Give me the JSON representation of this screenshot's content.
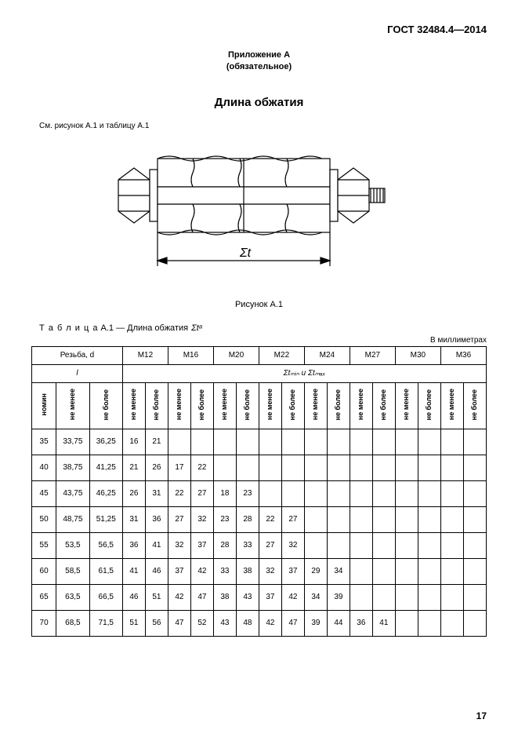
{
  "doc_header": "ГОСТ 32484.4—2014",
  "annex_line1": "Приложение А",
  "annex_line2": "(обязательное)",
  "title": "Длина обжатия",
  "ref_text": "См. рисунок А.1 и таблицу А.1",
  "figure_label": "Σt",
  "fig_caption": "Рисунок А.1",
  "table_title_prefix": "Т а б л и ц а",
  "table_title_rest": "  А.1 — Длина обжатия",
  "table_title_sym": "Σtᵃ",
  "units": "В миллиметрах",
  "header": {
    "thread": "Резьба, d",
    "l_label": "l",
    "sum_label": "Σtₘᵢₙ и Σtₘₐₓ",
    "nomin": "номин",
    "nm": "не менее",
    "nb": "не более",
    "sizes": [
      "M12",
      "M16",
      "M20",
      "M22",
      "M24",
      "M27",
      "M30",
      "M36"
    ]
  },
  "rows": [
    {
      "nom": "35",
      "lmin": "33,75",
      "lmax": "36,25",
      "v": [
        "16",
        "21",
        "",
        "",
        "",
        "",
        "",
        "",
        "",
        "",
        "",
        "",
        "",
        "",
        "",
        ""
      ]
    },
    {
      "nom": "40",
      "lmin": "38,75",
      "lmax": "41,25",
      "v": [
        "21",
        "26",
        "17",
        "22",
        "",
        "",
        "",
        "",
        "",
        "",
        "",
        "",
        "",
        "",
        "",
        ""
      ]
    },
    {
      "nom": "45",
      "lmin": "43,75",
      "lmax": "46,25",
      "v": [
        "26",
        "31",
        "22",
        "27",
        "18",
        "23",
        "",
        "",
        "",
        "",
        "",
        "",
        "",
        "",
        "",
        ""
      ]
    },
    {
      "nom": "50",
      "lmin": "48,75",
      "lmax": "51,25",
      "v": [
        "31",
        "36",
        "27",
        "32",
        "23",
        "28",
        "22",
        "27",
        "",
        "",
        "",
        "",
        "",
        "",
        "",
        ""
      ]
    },
    {
      "nom": "55",
      "lmin": "53,5",
      "lmax": "56,5",
      "v": [
        "36",
        "41",
        "32",
        "37",
        "28",
        "33",
        "27",
        "32",
        "",
        "",
        "",
        "",
        "",
        "",
        "",
        ""
      ]
    },
    {
      "nom": "60",
      "lmin": "58,5",
      "lmax": "61,5",
      "v": [
        "41",
        "46",
        "37",
        "42",
        "33",
        "38",
        "32",
        "37",
        "29",
        "34",
        "",
        "",
        "",
        "",
        "",
        ""
      ]
    },
    {
      "nom": "65",
      "lmin": "63,5",
      "lmax": "66,5",
      "v": [
        "46",
        "51",
        "42",
        "47",
        "38",
        "43",
        "37",
        "42",
        "34",
        "39",
        "",
        "",
        "",
        "",
        "",
        ""
      ]
    },
    {
      "nom": "70",
      "lmin": "68,5",
      "lmax": "71,5",
      "v": [
        "51",
        "56",
        "47",
        "52",
        "43",
        "48",
        "42",
        "47",
        "39",
        "44",
        "36",
        "41",
        "",
        "",
        " ",
        " "
      ]
    }
  ],
  "page_number": "17",
  "colors": {
    "text": "#000000",
    "background": "#ffffff",
    "border": "#000000"
  }
}
